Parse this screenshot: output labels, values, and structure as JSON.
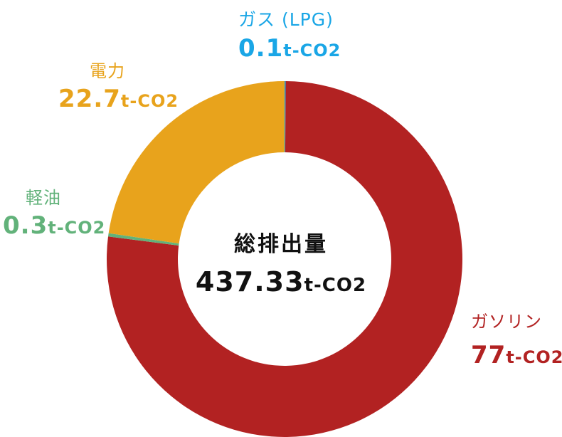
{
  "chart_data": {
    "type": "pie",
    "categories": [
      "ガソリン",
      "ガス (LPG)",
      "電力",
      "軽油"
    ],
    "values": [
      77,
      0.1,
      22.7,
      0.3
    ],
    "value_labels": [
      "77",
      "0.1",
      "22.7",
      "0.3"
    ],
    "unit": "t-CO2",
    "colors": [
      "#b22222",
      "#1aa6e6",
      "#e8a31c",
      "#62b27a"
    ],
    "center_title": "総排出量",
    "center_value": "437.33",
    "legend": "none"
  }
}
